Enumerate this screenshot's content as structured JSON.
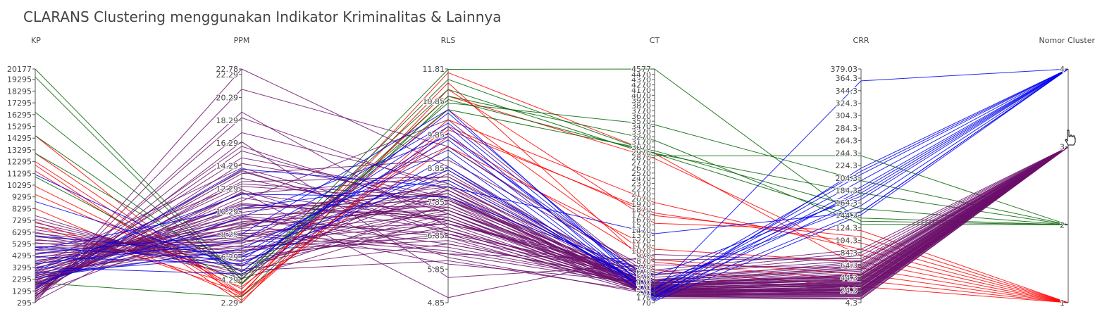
{
  "title": "CLARANS Clustering menggunakan Indikator Kriminalitas & Lainnya",
  "colors": {
    "cluster_1": "#ff0000",
    "cluster_2": "#006400",
    "cluster_3": "#6b0f6b",
    "cluster_4": "#0000ee"
  },
  "chart_data": {
    "type": "parallel_coordinates",
    "title": "CLARANS Clustering menggunakan Indikator Kriminalitas & Lainnya",
    "color_by": "Nomor Cluster",
    "dimensions": [
      {
        "name": "KP",
        "range": [
          295,
          20177
        ],
        "tick_labels": [
          "295",
          "1295",
          "2295",
          "3295",
          "4295",
          "5295",
          "6295",
          "7295",
          "8295",
          "9295",
          "10295",
          "11295",
          "12295",
          "13295",
          "14295",
          "15295",
          "16295",
          "17295",
          "18295",
          "19295",
          "20177"
        ]
      },
      {
        "name": "PPM",
        "range": [
          2.29,
          22.78
        ],
        "tick_labels": [
          "2.29",
          "4.29",
          "6.29",
          "8.29",
          "10.29",
          "12.29",
          "14.29",
          "16.29",
          "18.29",
          "20.29",
          "22.29",
          "22.78"
        ]
      },
      {
        "name": "RLS",
        "range": [
          4.85,
          11.81
        ],
        "tick_labels": [
          "4.85",
          "5.85",
          "6.85",
          "7.85",
          "8.85",
          "9.85",
          "10.85",
          "11.81"
        ]
      },
      {
        "name": "CT",
        "range": [
          70,
          4577
        ],
        "tick_labels": [
          "70",
          "170",
          "270",
          "370",
          "470",
          "570",
          "670",
          "770",
          "870",
          "970",
          "1070",
          "1170",
          "1270",
          "1370",
          "1470",
          "1570",
          "1670",
          "1770",
          "1870",
          "1970",
          "2070",
          "2170",
          "2270",
          "2370",
          "2470",
          "2570",
          "2670",
          "2770",
          "2870",
          "2970",
          "3070",
          "3170",
          "3270",
          "3370",
          "3470",
          "3570",
          "3670",
          "3770",
          "3870",
          "3970",
          "4070",
          "4170",
          "4270",
          "4370",
          "4470",
          "4577"
        ]
      },
      {
        "name": "CRR",
        "range": [
          4.3,
          379.03
        ],
        "tick_labels": [
          "4.3",
          "24.3",
          "44.3",
          "64.3",
          "84.3",
          "104.3",
          "124.3",
          "144.3",
          "164.3",
          "184.3",
          "204.3",
          "224.3",
          "244.3",
          "264.3",
          "284.3",
          "304.3",
          "324.3",
          "344.3",
          "364.3",
          "379.03"
        ]
      },
      {
        "name": "Nomor Cluster",
        "range": [
          1,
          4
        ],
        "tick_labels": [
          "1",
          "2",
          "3",
          "4"
        ]
      }
    ],
    "series": [
      {
        "cluster": 1,
        "color": "#ff0000",
        "lines": [
          [
            12300,
            3.0,
            11.7,
            2950,
            60,
            1
          ],
          [
            10200,
            3.5,
            11.0,
            2850,
            80,
            1
          ],
          [
            14500,
            2.5,
            10.3,
            2000,
            90,
            1
          ],
          [
            8300,
            2.8,
            10.0,
            1800,
            100,
            1
          ],
          [
            7200,
            3.2,
            9.5,
            1100,
            70,
            1
          ],
          [
            12000,
            2.3,
            11.2,
            1600,
            120,
            1
          ],
          [
            9500,
            4.0,
            10.6,
            900,
            50,
            1
          ],
          [
            6800,
            3.7,
            9.8,
            850,
            40,
            1
          ],
          [
            11500,
            2.9,
            10.1,
            1750,
            110,
            1
          ],
          [
            13000,
            3.1,
            11.4,
            700,
            30,
            1
          ]
        ]
      },
      {
        "cluster": 2,
        "color": "#006400",
        "lines": [
          [
            20177,
            4.3,
            11.8,
            4577,
            135,
            2
          ],
          [
            19500,
            4.0,
            11.5,
            2950,
            140,
            2
          ],
          [
            16500,
            4.6,
            11.2,
            2900,
            240,
            2
          ],
          [
            14500,
            4.4,
            10.8,
            3500,
            200,
            2
          ],
          [
            13000,
            5.0,
            10.6,
            3000,
            155,
            2
          ],
          [
            11000,
            3.9,
            11.0,
            3200,
            130,
            2
          ],
          [
            2000,
            2.8,
            10.9,
            2950,
            180,
            2
          ]
        ]
      },
      {
        "cluster": 3,
        "color": "#6b0f6b",
        "lines": [
          [
            300,
            22.78,
            8.9,
            300,
            40,
            3
          ],
          [
            500,
            21.0,
            9.5,
            500,
            30,
            3
          ],
          [
            800,
            18.5,
            8.2,
            350,
            20,
            3
          ],
          [
            1200,
            16.0,
            7.5,
            200,
            10,
            3
          ],
          [
            1500,
            15.0,
            8.0,
            400,
            50,
            3
          ],
          [
            1800,
            13.8,
            7.0,
            250,
            30,
            3
          ],
          [
            2100,
            12.5,
            7.9,
            500,
            60,
            3
          ],
          [
            2500,
            11.8,
            8.6,
            300,
            25,
            3
          ],
          [
            2800,
            11.0,
            7.3,
            450,
            45,
            3
          ],
          [
            3200,
            10.5,
            8.1,
            200,
            15,
            3
          ],
          [
            3500,
            10.0,
            7.6,
            350,
            35,
            3
          ],
          [
            3800,
            9.6,
            6.9,
            600,
            80,
            3
          ],
          [
            4100,
            9.2,
            8.4,
            250,
            20,
            3
          ],
          [
            4400,
            8.8,
            7.8,
            150,
            10,
            3
          ],
          [
            4700,
            8.4,
            6.5,
            400,
            40,
            3
          ],
          [
            5000,
            8.0,
            8.0,
            300,
            30,
            3
          ],
          [
            5300,
            7.6,
            7.2,
            700,
            90,
            3
          ],
          [
            5600,
            7.2,
            6.8,
            200,
            20,
            3
          ],
          [
            5900,
            6.8,
            7.7,
            350,
            50,
            3
          ],
          [
            6200,
            6.4,
            8.3,
            500,
            70,
            3
          ],
          [
            6500,
            6.0,
            7.1,
            300,
            30,
            3
          ],
          [
            6800,
            5.6,
            7.5,
            250,
            25,
            3
          ],
          [
            7100,
            5.2,
            6.6,
            450,
            55,
            3
          ],
          [
            7400,
            4.8,
            8.7,
            300,
            35,
            3
          ],
          [
            7700,
            4.4,
            7.4,
            200,
            15,
            3
          ],
          [
            900,
            14.5,
            7.95,
            300,
            28,
            3
          ],
          [
            1100,
            13.2,
            7.3,
            380,
            42,
            3
          ],
          [
            1300,
            12.2,
            6.2,
            220,
            18,
            3
          ],
          [
            1600,
            11.5,
            7.0,
            460,
            58,
            3
          ],
          [
            1900,
            10.8,
            7.7,
            330,
            32,
            3
          ],
          [
            2200,
            10.2,
            8.3,
            210,
            22,
            3
          ],
          [
            2400,
            9.9,
            6.8,
            520,
            64,
            3
          ],
          [
            2700,
            9.4,
            7.6,
            280,
            27,
            3
          ],
          [
            3000,
            9.0,
            8.1,
            360,
            38,
            3
          ],
          [
            3300,
            8.6,
            7.2,
            240,
            24,
            3
          ],
          [
            3600,
            8.2,
            6.4,
            410,
            48,
            3
          ],
          [
            3900,
            7.9,
            7.9,
            190,
            14,
            3
          ],
          [
            4200,
            7.5,
            8.5,
            340,
            36,
            3
          ],
          [
            4500,
            7.1,
            7.0,
            270,
            26,
            3
          ],
          [
            4800,
            6.7,
            7.6,
            480,
            62,
            3
          ],
          [
            5100,
            6.3,
            6.9,
            230,
            21,
            3
          ],
          [
            5400,
            5.9,
            8.2,
            310,
            33,
            3
          ],
          [
            5700,
            5.5,
            7.3,
            430,
            52,
            3
          ],
          [
            6000,
            5.1,
            6.1,
            260,
            23,
            3
          ],
          [
            6300,
            4.7,
            7.8,
            370,
            41,
            3
          ],
          [
            400,
            12.0,
            5.0,
            1000,
            70,
            3
          ],
          [
            600,
            16.4,
            5.6,
            800,
            60,
            3
          ],
          [
            1000,
            9.8,
            6.3,
            900,
            75,
            3
          ],
          [
            1400,
            13.6,
            9.1,
            650,
            85,
            3
          ],
          [
            1700,
            11.2,
            10.3,
            420,
            40,
            3
          ],
          [
            2000,
            8.9,
            8.8,
            380,
            30,
            3
          ],
          [
            2300,
            7.7,
            9.5,
            560,
            66,
            3
          ],
          [
            2600,
            6.9,
            6.7,
            330,
            24,
            3
          ],
          [
            2900,
            10.9,
            7.4,
            290,
            20,
            3
          ],
          [
            3100,
            12.7,
            8.0,
            250,
            19,
            3
          ],
          [
            3400,
            14.1,
            7.2,
            620,
            72,
            3
          ],
          [
            3700,
            9.3,
            6.0,
            450,
            46,
            3
          ],
          [
            700,
            19.0,
            7.1,
            280,
            26,
            3
          ],
          [
            850,
            17.2,
            8.4,
            340,
            31,
            3
          ],
          [
            1050,
            15.6,
            7.6,
            410,
            44,
            3
          ],
          [
            1250,
            13.9,
            6.9,
            230,
            17,
            3
          ],
          [
            1450,
            12.9,
            8.6,
            500,
            57,
            3
          ],
          [
            1650,
            11.9,
            7.3,
            270,
            25,
            3
          ],
          [
            1850,
            10.6,
            7.9,
            360,
            37,
            3
          ],
          [
            2050,
            9.7,
            6.6,
            440,
            49,
            3
          ],
          [
            2250,
            9.1,
            8.2,
            180,
            12,
            3
          ],
          [
            2450,
            8.3,
            7.5,
            320,
            34,
            3
          ],
          [
            2650,
            7.8,
            6.3,
            390,
            43,
            3
          ],
          [
            2850,
            7.3,
            8.0,
            210,
            16,
            3
          ]
        ]
      },
      {
        "cluster": 4,
        "color": "#0000ee",
        "lines": [
          [
            11200,
            5.0,
            10.5,
            300,
            360,
            4
          ],
          [
            8900,
            5.5,
            9.9,
            250,
            210,
            4
          ],
          [
            6000,
            6.5,
            9.7,
            150,
            220,
            4
          ],
          [
            4500,
            8.3,
            10.6,
            200,
            190,
            4
          ],
          [
            5000,
            6.0,
            10.1,
            120,
            185,
            4
          ],
          [
            3300,
            4.8,
            9.2,
            100,
            145,
            4
          ],
          [
            2800,
            6.3,
            8.9,
            200,
            170,
            4
          ],
          [
            4800,
            10.6,
            8.5,
            350,
            180,
            4
          ],
          [
            3000,
            11.8,
            8.0,
            600,
            175,
            4
          ],
          [
            1800,
            9.8,
            9.8,
            450,
            160,
            4
          ],
          [
            2400,
            7.0,
            9.4,
            180,
            150,
            4
          ],
          [
            4200,
            5.7,
            8.8,
            260,
            200,
            4
          ],
          [
            3600,
            7.7,
            10.2,
            320,
            215,
            4
          ],
          [
            1500,
            14.0,
            8.3,
            1400,
            150,
            4
          ]
        ]
      }
    ]
  }
}
